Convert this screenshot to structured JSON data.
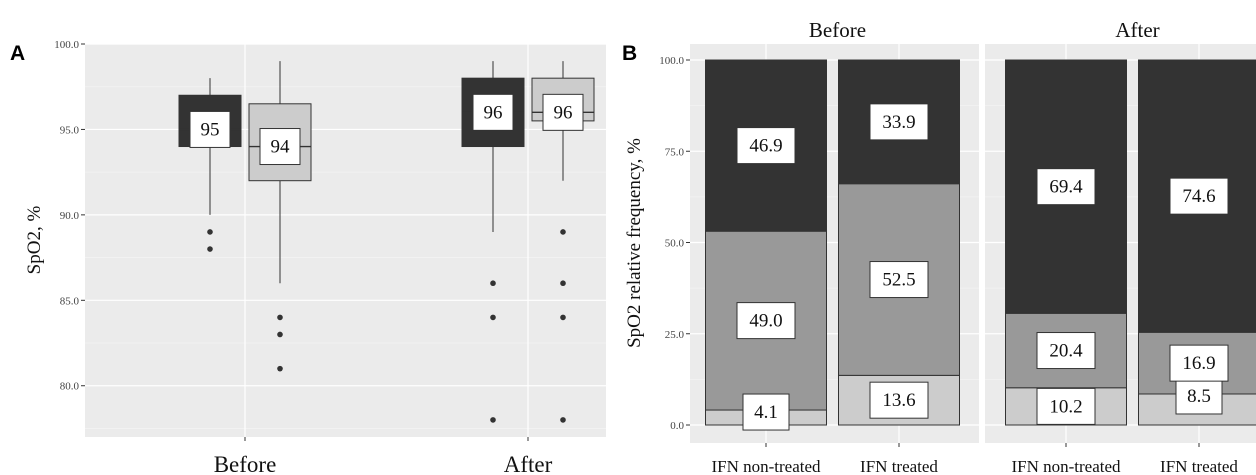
{
  "colors": {
    "panel_bg": "#ebebeb",
    "grid_major": "#ffffff",
    "grid_minor": "#f3f3f3",
    "dark": "#333333",
    "medium": "#999999",
    "light": "#cccccc",
    "outline": "#333333"
  },
  "chart_data": [
    {
      "panel": "A",
      "type": "box",
      "ylabel": "SpO2, %",
      "ylim": [
        77,
        100
      ],
      "yticks": [
        "80.0",
        "85.0",
        "90.0",
        "95.0",
        "100.0"
      ],
      "categories": [
        "Before",
        "After"
      ],
      "series": [
        {
          "color": "#333333",
          "boxes": [
            {
              "category": "Before",
              "q1": 94,
              "median": 95,
              "q3": 97,
              "whisker_low": 90,
              "whisker_high": 98,
              "outliers": [
                88,
                89
              ],
              "label": "95"
            },
            {
              "category": "After",
              "q1": 94,
              "median": 96,
              "q3": 98,
              "whisker_low": 89,
              "whisker_high": 99,
              "outliers": [
                78,
                84,
                86
              ],
              "label": "96"
            }
          ]
        },
        {
          "color": "#cccccc",
          "boxes": [
            {
              "category": "Before",
              "q1": 92,
              "median": 94,
              "q3": 96.5,
              "whisker_low": 86,
              "whisker_high": 99,
              "outliers": [
                81,
                83,
                84
              ],
              "label": "94"
            },
            {
              "category": "After",
              "q1": 95.5,
              "median": 96,
              "q3": 98,
              "whisker_low": 92,
              "whisker_high": 99,
              "outliers": [
                78,
                84,
                86,
                89
              ],
              "label": "96"
            }
          ]
        }
      ]
    },
    {
      "panel": "B",
      "type": "stacked-bar",
      "ylabel": "SpO2 relative frequency, %",
      "ylim": [
        0,
        100
      ],
      "yticks": [
        "0.0",
        "25.0",
        "50.0",
        "75.0",
        "100.0"
      ],
      "facets": [
        {
          "title": "Before",
          "bars": [
            {
              "category": "IFN non-treated",
              "segments": [
                {
                  "color": "#cccccc",
                  "value": 4.1,
                  "label": "4.1"
                },
                {
                  "color": "#999999",
                  "value": 49.0,
                  "label": "49.0"
                },
                {
                  "color": "#333333",
                  "value": 46.9,
                  "label": "46.9"
                }
              ]
            },
            {
              "category": "IFN treated",
              "segments": [
                {
                  "color": "#cccccc",
                  "value": 13.6,
                  "label": "13.6"
                },
                {
                  "color": "#999999",
                  "value": 52.5,
                  "label": "52.5"
                },
                {
                  "color": "#333333",
                  "value": 33.9,
                  "label": "33.9"
                }
              ]
            }
          ]
        },
        {
          "title": "After",
          "bars": [
            {
              "category": "IFN non-treated",
              "segments": [
                {
                  "color": "#cccccc",
                  "value": 10.2,
                  "label": "10.2"
                },
                {
                  "color": "#999999",
                  "value": 20.4,
                  "label": "20.4"
                },
                {
                  "color": "#333333",
                  "value": 69.4,
                  "label": "69.4"
                }
              ]
            },
            {
              "category": "IFN treated",
              "segments": [
                {
                  "color": "#cccccc",
                  "value": 8.5,
                  "label": "8.5"
                },
                {
                  "color": "#999999",
                  "value": 16.9,
                  "label": "16.9"
                },
                {
                  "color": "#333333",
                  "value": 74.6,
                  "label": "74.6"
                }
              ]
            }
          ]
        }
      ]
    }
  ]
}
